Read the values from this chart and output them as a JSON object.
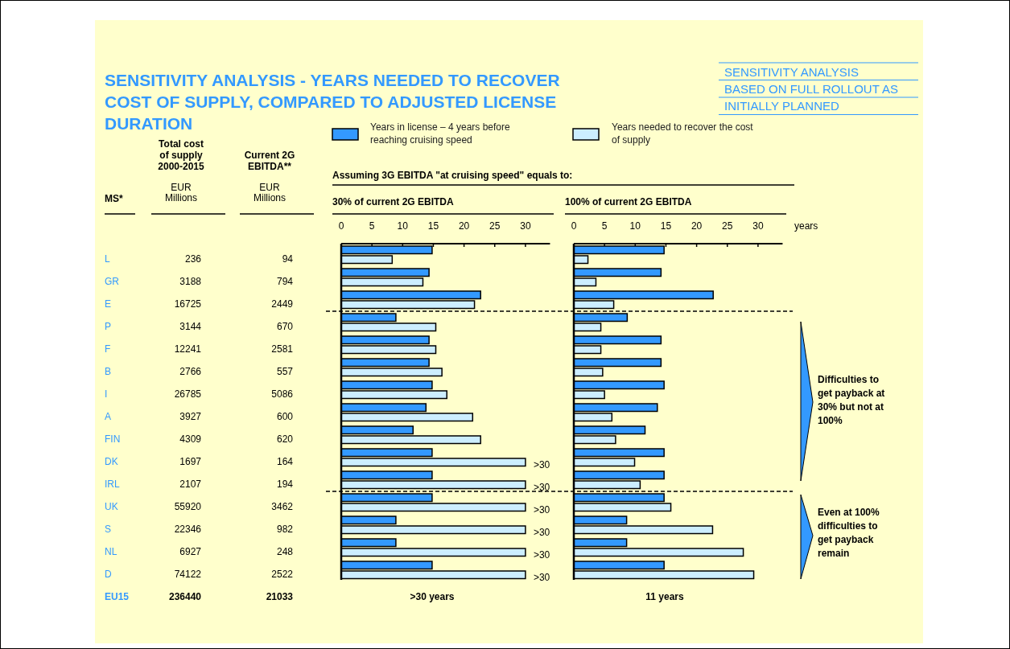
{
  "chart_data": [
    {
      "type": "other",
      "title": "SENSITIVITY ANALYSIS - YEARS NEEDED TO RECOVER COST OF SUPPLY, COMPARED TO ADJUSTED LICENSE DURATION",
      "subtitle": "SENSITIVITY ANALYSIS BASED ON FULL ROLLOUT AS INITIALLY PLANNED",
      "categories": [
        "L",
        "GR",
        "E",
        "P",
        "F",
        "B",
        "I",
        "A",
        "FIN",
        "DK",
        "IRL",
        "UK",
        "S",
        "NL",
        "D",
        "EU15"
      ],
      "series": [
        {
          "name": "Total cost of supply 2000-2015",
          "values": [
            236,
            3188,
            16725,
            3144,
            12241,
            2766,
            26785,
            3927,
            4309,
            1697,
            2107,
            55920,
            22346,
            6927,
            74122,
            236440
          ]
        },
        {
          "name": "Current 2G EBITDA**",
          "values": [
            94,
            794,
            2449,
            670,
            2581,
            557,
            5086,
            600,
            620,
            164,
            194,
            3462,
            982,
            248,
            2522,
            21033
          ]
        }
      ],
      "annotations": [
        "MS*",
        "EUR Millions",
        "EUR Millions"
      ],
      "data_labels": true
    },
    {
      "type": "bar",
      "orientation": "horizontal",
      "title": "30% of current 2G EBITDA",
      "subtitle": "Assuming 3G EBITDA \"at cruising speed\" equals to:",
      "categories": [
        null,
        null,
        null,
        null,
        null,
        null,
        null,
        null,
        null,
        null,
        null,
        null,
        null,
        null,
        null
      ],
      "series": [
        {
          "name": "Years in license – 4 years before reaching cruising speed",
          "color": "#3399ff",
          "values": [
            14.8,
            14.3,
            22.7,
            8.9,
            14.3,
            14.3,
            14.8,
            13.8,
            11.7,
            14.8,
            14.8,
            14.8,
            8.9,
            8.9,
            14.8
          ]
        },
        {
          "name": "Years needed to recover the cost of supply",
          "color": "#cceeff",
          "values": [
            8.3,
            13.3,
            21.7,
            15.4,
            15.4,
            16.4,
            17.2,
            21.4,
            22.7,
            30,
            30,
            30,
            30,
            30,
            30
          ],
          "value_labels": [
            null,
            null,
            null,
            null,
            null,
            null,
            null,
            null,
            null,
            ">30",
            ">30",
            ">30",
            ">30",
            ">30",
            ">30"
          ]
        }
      ],
      "xlim": [
        0,
        34
      ],
      "xticks": [
        0,
        5,
        10,
        15,
        20,
        25,
        30
      ],
      "legend": "top",
      "tick_labels": "x",
      "annotations": [
        ">30 years"
      ]
    },
    {
      "type": "bar",
      "orientation": "horizontal",
      "title": "100% of current 2G EBITDA",
      "xlabel": "years",
      "categories": [
        null,
        null,
        null,
        null,
        null,
        null,
        null,
        null,
        null,
        null,
        null,
        null,
        null,
        null,
        null
      ],
      "series": [
        {
          "color": "#3399ff",
          "values": [
            14.7,
            14.2,
            22.7,
            8.7,
            14.2,
            14.2,
            14.7,
            13.6,
            11.6,
            14.7,
            14.7,
            14.7,
            8.6,
            8.6,
            14.7
          ]
        },
        {
          "color": "#cceeff",
          "values": [
            2.3,
            3.6,
            6.5,
            4.4,
            4.4,
            4.7,
            5.0,
            6.2,
            6.8,
            9.9,
            10.8,
            15.8,
            22.6,
            27.6,
            29.3
          ]
        }
      ],
      "xlim": [
        0,
        34
      ],
      "xticks": [
        0,
        5,
        10,
        15,
        20,
        25,
        30
      ],
      "tick_labels": "x",
      "annotations": [
        "11 years",
        "Difficulties to get payback at 30% but not at 100%",
        "Even at 100% difficulties to get payback remain"
      ]
    }
  ]
}
